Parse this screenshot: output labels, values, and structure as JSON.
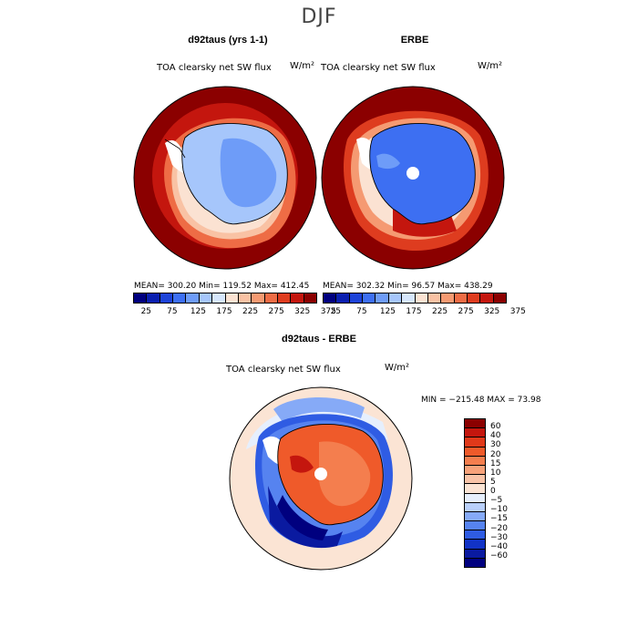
{
  "figure": {
    "season": "DJF"
  },
  "panel_left": {
    "title": "d92taus (yrs 1-1)",
    "field": "TOA clearsky net SW flux",
    "units": "W/m²",
    "stats": "MEAN= 300.20   Min= 119.52   Max= 412.45"
  },
  "panel_right": {
    "title": "ERBE",
    "field": "TOA clearsky net SW flux",
    "units": "W/m²",
    "stats": "MEAN= 302.32   Min=  96.57   Max= 438.29"
  },
  "panel_diff": {
    "title": "d92taus - ERBE",
    "field": "TOA clearsky net SW flux",
    "units": "W/m²",
    "stats": "MIN = −215.48  MAX =  73.98"
  },
  "colorbar_abs": {
    "labels": [
      "25",
      "75",
      "125",
      "175",
      "225",
      "275",
      "325",
      "375"
    ],
    "colors": [
      "#00007f",
      "#0a1fb0",
      "#1d43d8",
      "#3d6ff2",
      "#6e9cf8",
      "#a6c6fb",
      "#d6e6fc",
      "#fbe2d2",
      "#f9c2a4",
      "#f59a72",
      "#ee6c45",
      "#de3c1f",
      "#c4160e",
      "#8b0000"
    ]
  },
  "colorbar_diff": {
    "labels": [
      "60",
      "40",
      "30",
      "20",
      "15",
      "10",
      "5",
      "0",
      "−5",
      "−10",
      "−15",
      "−20",
      "−30",
      "−40",
      "−60"
    ],
    "colors": [
      "#8b0000",
      "#c4160e",
      "#e0391a",
      "#ef5a2a",
      "#f47e4e",
      "#f7a27a",
      "#f9c4a8",
      "#fbe4d4",
      "#e6effd",
      "#b9d0fb",
      "#86aaf7",
      "#5683f0",
      "#2f5ce3",
      "#1233c6",
      "#0a1aa0",
      "#00007f"
    ]
  }
}
